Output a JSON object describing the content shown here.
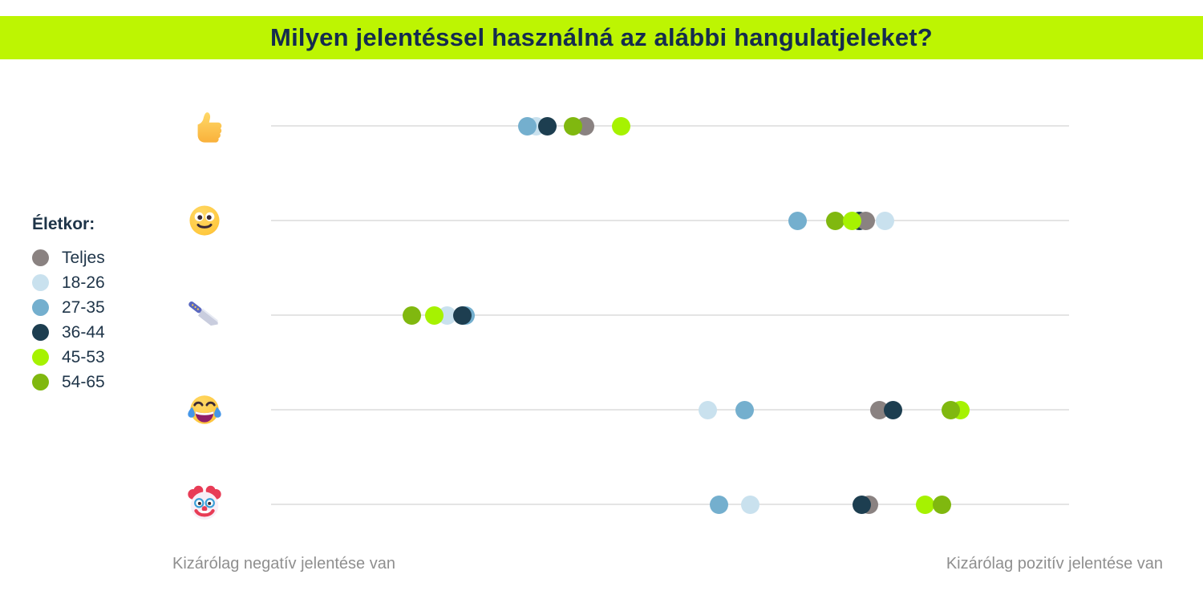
{
  "header": {
    "title": "Milyen jelentéssel használná az alábbi hangulatjeleket?",
    "background_color": "#bdf502",
    "text_color": "#152c4e"
  },
  "legend": {
    "title": "Életkor:",
    "text_color": "#1e3448",
    "items": [
      {
        "label": "Teljes",
        "color": "#8a8281"
      },
      {
        "label": "18-26",
        "color": "#c9e1ee"
      },
      {
        "label": "27-35",
        "color": "#74afce"
      },
      {
        "label": "36-44",
        "color": "#1d3e50"
      },
      {
        "label": "45-53",
        "color": "#a6f201"
      },
      {
        "label": "54-65",
        "color": "#80b80f"
      }
    ]
  },
  "axis": {
    "left_label": "Kizárólag negatív jelentése van",
    "right_label": "Kizárólag pozitív jelentése van"
  },
  "chart_data": {
    "type": "scatter",
    "title": "Milyen jelentéssel használná az alábbi hangulatjeleket?",
    "x_range": [
      0,
      1
    ],
    "x_min_label": "Kizárólag negatív jelentése van",
    "x_max_label": "Kizárólag pozitív jelentése van",
    "groups": [
      "Teljes",
      "18-26",
      "27-35",
      "36-44",
      "45-53",
      "54-65"
    ],
    "rows": [
      {
        "emoji": "thumbs-up",
        "char": "👍",
        "points": [
          {
            "group": "18-26",
            "value": 0.332
          },
          {
            "group": "Teljes",
            "value": 0.393
          },
          {
            "group": "27-35",
            "value": 0.321
          },
          {
            "group": "36-44",
            "value": 0.346
          },
          {
            "group": "54-65",
            "value": 0.378
          },
          {
            "group": "45-53",
            "value": 0.439
          }
        ]
      },
      {
        "emoji": "smiling-face",
        "char": "🙂",
        "points": [
          {
            "group": "36-44",
            "value": 0.737
          },
          {
            "group": "Teljes",
            "value": 0.745
          },
          {
            "group": "54-65",
            "value": 0.707
          },
          {
            "group": "45-53",
            "value": 0.728
          },
          {
            "group": "18-26",
            "value": 0.769
          },
          {
            "group": "27-35",
            "value": 0.66
          }
        ]
      },
      {
        "emoji": "kitchen-knife",
        "char": "🔪",
        "points": [
          {
            "group": "Teljes",
            "value": 0.241
          },
          {
            "group": "27-35",
            "value": 0.244
          },
          {
            "group": "18-26",
            "value": 0.221
          },
          {
            "group": "45-53",
            "value": 0.205
          },
          {
            "group": "36-44",
            "value": 0.24
          },
          {
            "group": "54-65",
            "value": 0.176
          }
        ]
      },
      {
        "emoji": "face-with-tears-of-joy",
        "char": "😂",
        "points": [
          {
            "group": "Teljes",
            "value": 0.762
          },
          {
            "group": "36-44",
            "value": 0.779
          },
          {
            "group": "45-53",
            "value": 0.864
          },
          {
            "group": "54-65",
            "value": 0.852
          },
          {
            "group": "18-26",
            "value": 0.547
          },
          {
            "group": "27-35",
            "value": 0.593
          }
        ]
      },
      {
        "emoji": "clown-face",
        "char": "🤡",
        "points": [
          {
            "group": "Teljes",
            "value": 0.749
          },
          {
            "group": "36-44",
            "value": 0.74
          },
          {
            "group": "45-53",
            "value": 0.82
          },
          {
            "group": "54-65",
            "value": 0.841
          },
          {
            "group": "27-35",
            "value": 0.561
          },
          {
            "group": "18-26",
            "value": 0.6
          }
        ]
      }
    ]
  }
}
